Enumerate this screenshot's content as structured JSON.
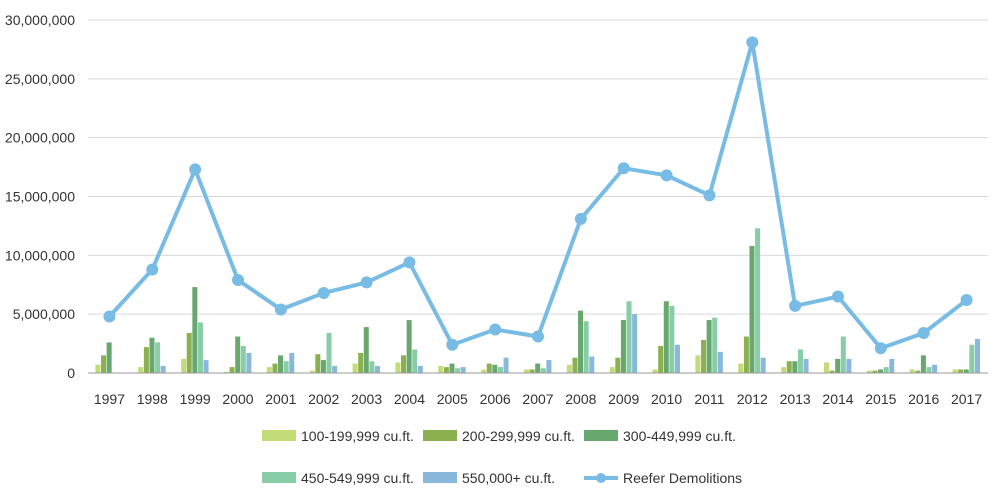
{
  "chart_data": {
    "type": "bar",
    "categories": [
      "1997",
      "1998",
      "1999",
      "2000",
      "2001",
      "2002",
      "2003",
      "2004",
      "2005",
      "2006",
      "2007",
      "2008",
      "2009",
      "2010",
      "2011",
      "2012",
      "2013",
      "2014",
      "2015",
      "2016",
      "2017"
    ],
    "ylim": [
      0,
      30000000
    ],
    "yticks": [
      0,
      5000000,
      10000000,
      15000000,
      20000000,
      25000000,
      30000000
    ],
    "ytick_labels": [
      "0",
      "5,000,000",
      "10,000,000",
      "15,000,000",
      "20,000,000",
      "25,000,000",
      "30,000,000"
    ],
    "grid": true,
    "legend_position": "bottom",
    "series": [
      {
        "name": "100-199,999 cu.ft.",
        "kind": "bar",
        "color": "#c3dc78",
        "values": [
          700000,
          500000,
          1200000,
          100000,
          500000,
          200000,
          800000,
          900000,
          600000,
          300000,
          300000,
          700000,
          500000,
          300000,
          1500000,
          800000,
          500000,
          900000,
          200000,
          300000,
          300000
        ]
      },
      {
        "name": "200-299,999 cu.ft.",
        "kind": "bar",
        "color": "#8cb050",
        "values": [
          1500000,
          2200000,
          3400000,
          500000,
          800000,
          1600000,
          1700000,
          1500000,
          500000,
          800000,
          300000,
          1300000,
          1300000,
          2300000,
          2800000,
          3100000,
          1000000,
          200000,
          200000,
          200000,
          300000
        ]
      },
      {
        "name": "300-449,999 cu.ft.",
        "kind": "bar",
        "color": "#66a86e",
        "values": [
          2600000,
          3000000,
          7300000,
          3100000,
          1500000,
          1100000,
          3900000,
          4500000,
          800000,
          700000,
          800000,
          5300000,
          4500000,
          6100000,
          4500000,
          10800000,
          1000000,
          1200000,
          300000,
          1500000,
          300000
        ]
      },
      {
        "name": "450-549,999 cu.ft.",
        "kind": "bar",
        "color": "#88cca8",
        "values": [
          0,
          2600000,
          4300000,
          2300000,
          1000000,
          3400000,
          1000000,
          2000000,
          400000,
          500000,
          400000,
          4400000,
          6100000,
          5700000,
          4700000,
          12300000,
          2000000,
          3100000,
          500000,
          500000,
          2400000
        ]
      },
      {
        "name": "550,000+ cu.ft.",
        "kind": "bar",
        "color": "#8ab8dc",
        "values": [
          0,
          600000,
          1100000,
          1700000,
          1700000,
          600000,
          600000,
          600000,
          500000,
          1300000,
          1100000,
          1400000,
          5000000,
          2400000,
          1800000,
          1300000,
          1200000,
          1200000,
          1200000,
          700000,
          2900000
        ]
      },
      {
        "name": "Reefer Demolitions",
        "kind": "line",
        "color": "#78bce6",
        "values": [
          4800000,
          8800000,
          17300000,
          7900000,
          5400000,
          6800000,
          7700000,
          9400000,
          2400000,
          3700000,
          3100000,
          13100000,
          17400000,
          16800000,
          15100000,
          28100000,
          5700000,
          6500000,
          2100000,
          3400000,
          6200000
        ]
      }
    ]
  }
}
